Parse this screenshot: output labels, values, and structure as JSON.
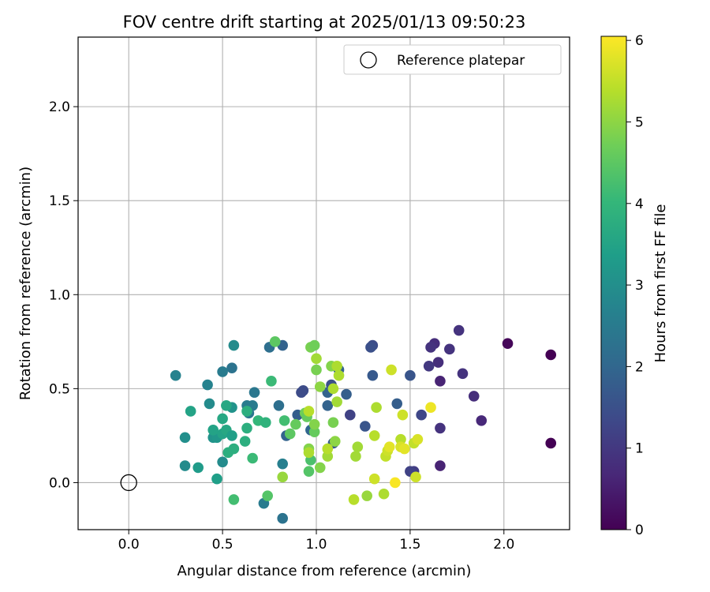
{
  "chart_data": {
    "type": "scatter",
    "title": "FOV centre drift starting at 2025/01/13 09:50:23",
    "xlabel": "Angular distance from reference (arcmin)",
    "ylabel": "Rotation from reference (arcmin)",
    "xlim": [
      -0.27,
      2.35
    ],
    "ylim": [
      -0.25,
      2.37
    ],
    "xticks": [
      "0.0",
      "0.5",
      "1.0",
      "1.5",
      "2.0"
    ],
    "yticks": [
      "0.0",
      "0.5",
      "1.0",
      "1.5",
      "2.0"
    ],
    "grid": true,
    "legend": {
      "position": "top-right",
      "entries": [
        {
          "label": "Reference platepar",
          "marker": "open-circle",
          "x": 0.0,
          "y": 0.0
        }
      ]
    },
    "colorbar": {
      "label": "Hours from first FF file",
      "range": [
        0,
        6.05
      ],
      "ticks": [
        "0",
        "1",
        "2",
        "3",
        "4",
        "5",
        "6"
      ],
      "colormap": "viridis",
      "colormap_stops": [
        "#440154",
        "#482878",
        "#3e4989",
        "#31688e",
        "#26828e",
        "#1f9e89",
        "#35b779",
        "#6ece58",
        "#b5de2b",
        "#fde725"
      ]
    },
    "points": [
      [
        2.25,
        0.68,
        0.0
      ],
      [
        2.25,
        0.21,
        0.0
      ],
      [
        2.02,
        0.74,
        0.1
      ],
      [
        1.88,
        0.33,
        0.7
      ],
      [
        1.84,
        0.46,
        0.8
      ],
      [
        1.78,
        0.58,
        0.9
      ],
      [
        1.76,
        0.81,
        0.9
      ],
      [
        1.71,
        0.71,
        0.9
      ],
      [
        1.66,
        0.54,
        0.6
      ],
      [
        1.66,
        0.29,
        0.9
      ],
      [
        1.66,
        0.09,
        0.6
      ],
      [
        1.65,
        0.64,
        0.8
      ],
      [
        1.63,
        0.74,
        0.8
      ],
      [
        1.61,
        0.72,
        0.9
      ],
      [
        1.6,
        0.62,
        1.0
      ],
      [
        1.56,
        0.36,
        1.3
      ],
      [
        1.52,
        0.06,
        1.1
      ],
      [
        1.5,
        0.06,
        1.2
      ],
      [
        1.5,
        0.57,
        1.6
      ],
      [
        1.43,
        0.42,
        1.8
      ],
      [
        1.3,
        0.73,
        1.4
      ],
      [
        1.29,
        0.72,
        1.5
      ],
      [
        1.3,
        0.57,
        1.7
      ],
      [
        1.26,
        0.3,
        1.6
      ],
      [
        1.18,
        0.36,
        1.2
      ],
      [
        1.16,
        0.47,
        1.8
      ],
      [
        1.12,
        0.6,
        1.9
      ],
      [
        1.08,
        0.52,
        1.5
      ],
      [
        1.09,
        0.21,
        1.7
      ],
      [
        1.06,
        0.48,
        1.9
      ],
      [
        1.06,
        0.41,
        1.9
      ],
      [
        0.97,
        0.28,
        2.0
      ],
      [
        0.93,
        0.49,
        1.4
      ],
      [
        0.92,
        0.48,
        1.4
      ],
      [
        0.9,
        0.36,
        1.8
      ],
      [
        0.84,
        0.25,
        1.9
      ],
      [
        0.82,
        0.73,
        1.9
      ],
      [
        0.8,
        0.41,
        2.2
      ],
      [
        0.75,
        0.72,
        2.2
      ],
      [
        0.82,
        -0.19,
        2.3
      ],
      [
        0.72,
        -0.11,
        2.5
      ],
      [
        0.82,
        0.1,
        2.6
      ],
      [
        0.67,
        0.48,
        2.4
      ],
      [
        0.66,
        0.41,
        2.5
      ],
      [
        0.63,
        0.41,
        2.5
      ],
      [
        0.64,
        0.37,
        2.4
      ],
      [
        0.55,
        0.61,
        2.3
      ],
      [
        0.56,
        0.73,
        2.9
      ],
      [
        0.5,
        0.59,
        2.5
      ],
      [
        0.42,
        0.52,
        2.7
      ],
      [
        0.25,
        0.57,
        2.7
      ],
      [
        0.43,
        0.42,
        2.9
      ],
      [
        0.45,
        0.24,
        3.1
      ],
      [
        0.47,
        0.24,
        3.2
      ],
      [
        0.5,
        0.11,
        2.9
      ],
      [
        0.3,
        0.09,
        2.9
      ],
      [
        0.3,
        0.24,
        3.0
      ],
      [
        0.37,
        0.08,
        3.3
      ],
      [
        0.55,
        0.4,
        3.1
      ],
      [
        0.52,
        0.41,
        3.6
      ],
      [
        0.47,
        0.02,
        3.4
      ],
      [
        0.33,
        0.38,
        3.5
      ],
      [
        0.45,
        0.28,
        3.5
      ],
      [
        0.5,
        0.26,
        3.5
      ],
      [
        0.52,
        0.28,
        3.6
      ],
      [
        0.5,
        0.34,
        3.6
      ],
      [
        0.55,
        0.25,
        3.4
      ],
      [
        0.53,
        0.16,
        3.8
      ],
      [
        0.56,
        0.18,
        3.8
      ],
      [
        0.62,
        0.22,
        3.8
      ],
      [
        0.63,
        0.29,
        3.8
      ],
      [
        0.63,
        0.38,
        3.8
      ],
      [
        0.69,
        0.33,
        4.0
      ],
      [
        0.73,
        0.32,
        3.9
      ],
      [
        0.66,
        0.13,
        4.1
      ],
      [
        0.76,
        0.54,
        4.1
      ],
      [
        0.56,
        -0.09,
        4.2
      ],
      [
        0.74,
        -0.07,
        4.4
      ],
      [
        0.78,
        0.75,
        4.5
      ],
      [
        0.83,
        0.33,
        4.2
      ],
      [
        0.86,
        0.26,
        4.5
      ],
      [
        0.89,
        0.31,
        4.6
      ],
      [
        0.94,
        0.37,
        4.7
      ],
      [
        0.95,
        0.35,
        4.6
      ],
      [
        0.97,
        0.12,
        4.3
      ],
      [
        0.96,
        0.06,
        4.4
      ],
      [
        0.96,
        0.18,
        4.9
      ],
      [
        0.99,
        0.27,
        4.6
      ],
      [
        0.99,
        0.31,
        4.9
      ],
      [
        0.97,
        0.72,
        4.8
      ],
      [
        0.99,
        0.73,
        4.7
      ],
      [
        1.0,
        0.6,
        4.8
      ],
      [
        1.02,
        0.51,
        5.0
      ],
      [
        1.0,
        0.66,
        5.2
      ],
      [
        1.02,
        0.08,
        4.9
      ],
      [
        1.06,
        0.14,
        5.2
      ],
      [
        1.06,
        0.18,
        5.4
      ],
      [
        1.08,
        0.62,
        4.9
      ],
      [
        1.09,
        0.5,
        5.3
      ],
      [
        1.09,
        0.32,
        4.8
      ],
      [
        1.1,
        0.22,
        5.0
      ],
      [
        1.11,
        0.43,
        5.2
      ],
      [
        1.11,
        0.62,
        5.3
      ],
      [
        1.12,
        0.57,
        5.3
      ],
      [
        0.82,
        0.03,
        5.1
      ],
      [
        0.96,
        0.16,
        5.3
      ],
      [
        0.96,
        0.38,
        5.4
      ],
      [
        1.2,
        -0.09,
        5.4
      ],
      [
        1.21,
        0.14,
        5.2
      ],
      [
        1.22,
        0.19,
        5.2
      ],
      [
        1.27,
        -0.07,
        5.1
      ],
      [
        1.31,
        0.25,
        5.4
      ],
      [
        1.32,
        0.4,
        5.3
      ],
      [
        1.31,
        0.02,
        5.6
      ],
      [
        1.36,
        -0.06,
        5.3
      ],
      [
        1.37,
        0.14,
        5.5
      ],
      [
        1.38,
        0.17,
        5.6
      ],
      [
        1.39,
        0.19,
        5.8
      ],
      [
        1.4,
        0.6,
        5.6
      ],
      [
        1.42,
        0.0,
        6.0
      ],
      [
        1.45,
        0.23,
        5.4
      ],
      [
        1.45,
        0.19,
        5.7
      ],
      [
        1.47,
        0.18,
        5.8
      ],
      [
        1.46,
        0.36,
        5.6
      ],
      [
        1.52,
        0.21,
        5.5
      ],
      [
        1.53,
        0.03,
        5.6
      ],
      [
        1.54,
        0.23,
        5.7
      ],
      [
        1.61,
        0.4,
        5.9
      ]
    ]
  }
}
